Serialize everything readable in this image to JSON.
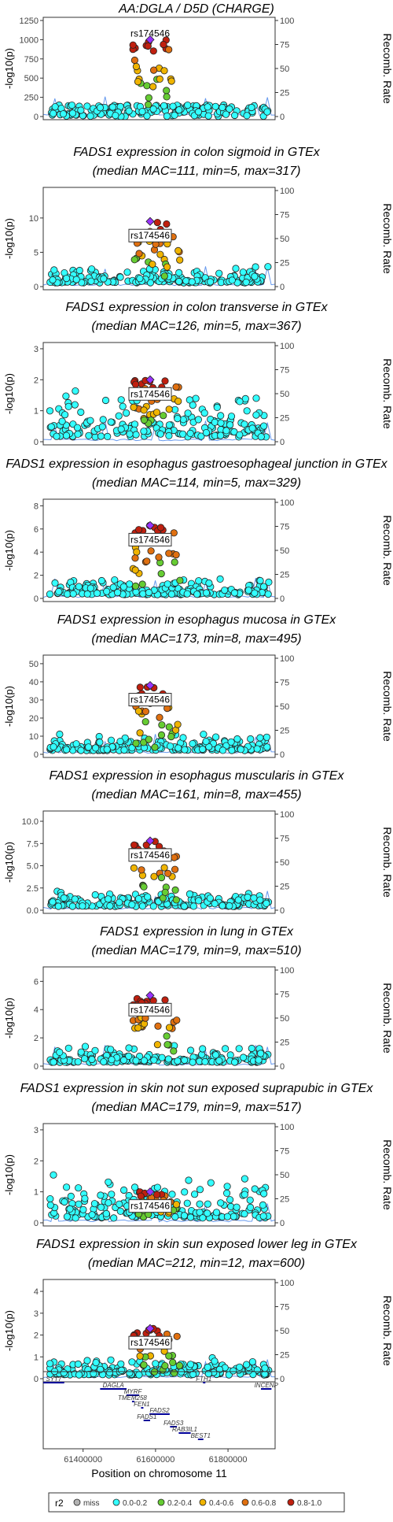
{
  "chart_data": {
    "type": "scatter",
    "description_none": "",
    "lead_snp": "rs174546",
    "y2_label": "Recomb. Rate",
    "y2_ticks": [
      0,
      25,
      50,
      75,
      100
    ],
    "x_axis": {
      "label": "Position on chromosome 11",
      "ticks": [
        "61400000",
        "61600000",
        "61800000"
      ],
      "range": [
        61290000,
        61930000
      ]
    },
    "legend": {
      "title": "r2",
      "entries": [
        {
          "label": "miss",
          "color": "#b3b3b3"
        },
        {
          "label": "0.0-0.2",
          "color": "#33ffff"
        },
        {
          "label": "0.2-0.4",
          "color": "#66cc33"
        },
        {
          "label": "0.4-0.6",
          "color": "#f0b400"
        },
        {
          "label": "0.6-0.8",
          "color": "#e07010"
        },
        {
          "label": "0.8-1.0",
          "color": "#c0200f"
        }
      ],
      "placement": "bottom"
    },
    "panels": [
      {
        "title1": "AA:DGLA / D5D (CHARGE)",
        "title2": "",
        "yticks": [
          "0",
          "250",
          "500",
          "750",
          "1000",
          "1250"
        ],
        "ymax": 1250,
        "lead_y": 1000,
        "label_pos": "above"
      },
      {
        "title1": "FADS1 expression in colon sigmoid in GTEx",
        "title2": "(median MAC=111, min=5, max=317)",
        "yticks": [
          "0",
          "5",
          "10"
        ],
        "ymax": 14,
        "lead_y": 9.5,
        "label_pos": "below"
      },
      {
        "title1": "FADS1 expression in colon transverse in GTEx",
        "title2": "(median MAC=126, min=5, max=367)",
        "yticks": [
          "0",
          "1",
          "2",
          "3"
        ],
        "ymax": 3.1,
        "lead_y": 2.0,
        "label_pos": "below"
      },
      {
        "title1": "FADS1 expression in esophagus gastroesophageal junction in GTEx",
        "title2": "(median MAC=114, min=5, max=329)",
        "yticks": [
          "0",
          "2",
          "4",
          "6",
          "8"
        ],
        "ymax": 8.3,
        "lead_y": 6.3,
        "label_pos": "below"
      },
      {
        "title1": "FADS1 expression in esophagus mucosa in GTEx",
        "title2": "(median MAC=173, min=8, max=495)",
        "yticks": [
          "0",
          "10",
          "20",
          "30",
          "40",
          "50"
        ],
        "ymax": 53,
        "lead_y": 38,
        "label_pos": "below"
      },
      {
        "title1": "FADS1 expression in esophagus muscularis in GTEx",
        "title2": "(median MAC=161, min=8, max=455)",
        "yticks": [
          "0.0",
          "2.5",
          "5.0",
          "7.5",
          "10.0"
        ],
        "ymax": 10.8,
        "lead_y": 7.8,
        "label_pos": "below"
      },
      {
        "title1": "FADS1 expression in lung in GTEx",
        "title2": "(median MAC=179, min=9, max=510)",
        "yticks": [
          "0",
          "2",
          "4",
          "6"
        ],
        "ymax": 6.8,
        "lead_y": 5.0,
        "label_pos": "below"
      },
      {
        "title1": "FADS1 expression in skin not sun exposed suprapubic in GTEx",
        "title2": "(median MAC=179, min=9, max=517)",
        "yticks": [
          "0",
          "1",
          "2",
          "3"
        ],
        "ymax": 3.1,
        "lead_y": 1.0,
        "label_pos": "below"
      },
      {
        "title1": "FADS1 expression in skin sun exposed lower leg in GTEx",
        "title2": "(median MAC=212, min=12, max=600)",
        "yticks": [
          "0",
          "1",
          "2",
          "3",
          "4"
        ],
        "ymax": 4.4,
        "lead_y": 2.3,
        "label_pos": "below"
      }
    ],
    "genes": [
      {
        "name": "SYT7",
        "start": 61282000,
        "end": 61348000,
        "row": 0
      },
      {
        "name": "DAGLA",
        "start": 61447000,
        "end": 61520000,
        "row": 1
      },
      {
        "name": "MYRF",
        "start": 61520000,
        "end": 61555000,
        "row": 2
      },
      {
        "name": "TMEM258",
        "start": 61535000,
        "end": 61537000,
        "row": 3
      },
      {
        "name": "FEN1",
        "start": 61560000,
        "end": 61564000,
        "row": 4
      },
      {
        "name": "FADS2",
        "start": 61583000,
        "end": 61639000,
        "row": 5
      },
      {
        "name": "FADS1",
        "start": 61567000,
        "end": 61585000,
        "row": 6
      },
      {
        "name": "FADS3",
        "start": 61640000,
        "end": 61659000,
        "row": 7
      },
      {
        "name": "RAB3IL1",
        "start": 61664000,
        "end": 61697000,
        "row": 8
      },
      {
        "name": "BEST1",
        "start": 61717000,
        "end": 61732000,
        "row": 9
      },
      {
        "name": "FTH1",
        "start": 61731000,
        "end": 61735000,
        "row": 0
      },
      {
        "name": "INCENP",
        "start": 61891000,
        "end": 61920000,
        "row": 1
      }
    ]
  }
}
